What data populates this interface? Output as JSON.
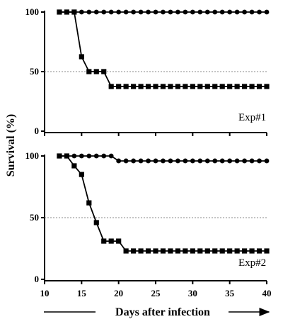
{
  "chart_data": {
    "type": "line",
    "ylabel": "Survival (%)",
    "xlabel": "Days after infection",
    "xlim": [
      10,
      40
    ],
    "x_ticks": [
      "10",
      "15",
      "20",
      "25",
      "30",
      "35",
      "40"
    ],
    "ylim": [
      0,
      100
    ],
    "y_ticks": [
      "0",
      "50",
      "100"
    ],
    "reference_line": 50,
    "grid": false,
    "colors": {
      "ink": "#000000",
      "reference": "#888888"
    },
    "panels": [
      {
        "label": "Exp#1",
        "series": [
          {
            "marker": "circle",
            "x": [
              12,
              13,
              14,
              15,
              16,
              17,
              18,
              19,
              20,
              21,
              22,
              23,
              24,
              25,
              26,
              27,
              28,
              29,
              30,
              31,
              32,
              33,
              34,
              35,
              36,
              37,
              38,
              39,
              40
            ],
            "y": [
              100,
              100,
              100,
              100,
              100,
              100,
              100,
              100,
              100,
              100,
              100,
              100,
              100,
              100,
              100,
              100,
              100,
              100,
              100,
              100,
              100,
              100,
              100,
              100,
              100,
              100,
              100,
              100,
              100
            ]
          },
          {
            "marker": "square",
            "x": [
              12,
              13,
              14,
              15,
              16,
              17,
              18,
              19,
              20,
              21,
              22,
              23,
              24,
              25,
              26,
              27,
              28,
              29,
              30,
              31,
              32,
              33,
              34,
              35,
              36,
              37,
              38,
              39,
              40
            ],
            "y": [
              100,
              100,
              100,
              62.5,
              50,
              50,
              50,
              37.5,
              37.5,
              37.5,
              37.5,
              37.5,
              37.5,
              37.5,
              37.5,
              37.5,
              37.5,
              37.5,
              37.5,
              37.5,
              37.5,
              37.5,
              37.5,
              37.5,
              37.5,
              37.5,
              37.5,
              37.5,
              37.5
            ]
          }
        ]
      },
      {
        "label": "Exp#2",
        "series": [
          {
            "marker": "circle",
            "x": [
              12,
              13,
              14,
              15,
              16,
              17,
              18,
              19,
              20,
              21,
              22,
              23,
              24,
              25,
              26,
              27,
              28,
              29,
              30,
              31,
              32,
              33,
              34,
              35,
              36,
              37,
              38,
              39,
              40
            ],
            "y": [
              100,
              100,
              100,
              100,
              100,
              100,
              100,
              100,
              96,
              96,
              96,
              96,
              96,
              96,
              96,
              96,
              96,
              96,
              96,
              96,
              96,
              96,
              96,
              96,
              96,
              96,
              96,
              96,
              96
            ]
          },
          {
            "marker": "square",
            "x": [
              12,
              13,
              14,
              15,
              16,
              17,
              18,
              19,
              20,
              21,
              22,
              23,
              24,
              25,
              26,
              27,
              28,
              29,
              30,
              31,
              32,
              33,
              34,
              35,
              36,
              37,
              38,
              39,
              40
            ],
            "y": [
              100,
              100,
              92,
              85,
              62,
              46,
              31,
              31,
              31,
              23,
              23,
              23,
              23,
              23,
              23,
              23,
              23,
              23,
              23,
              23,
              23,
              23,
              23,
              23,
              23,
              23,
              23,
              23,
              23
            ]
          }
        ]
      }
    ]
  }
}
